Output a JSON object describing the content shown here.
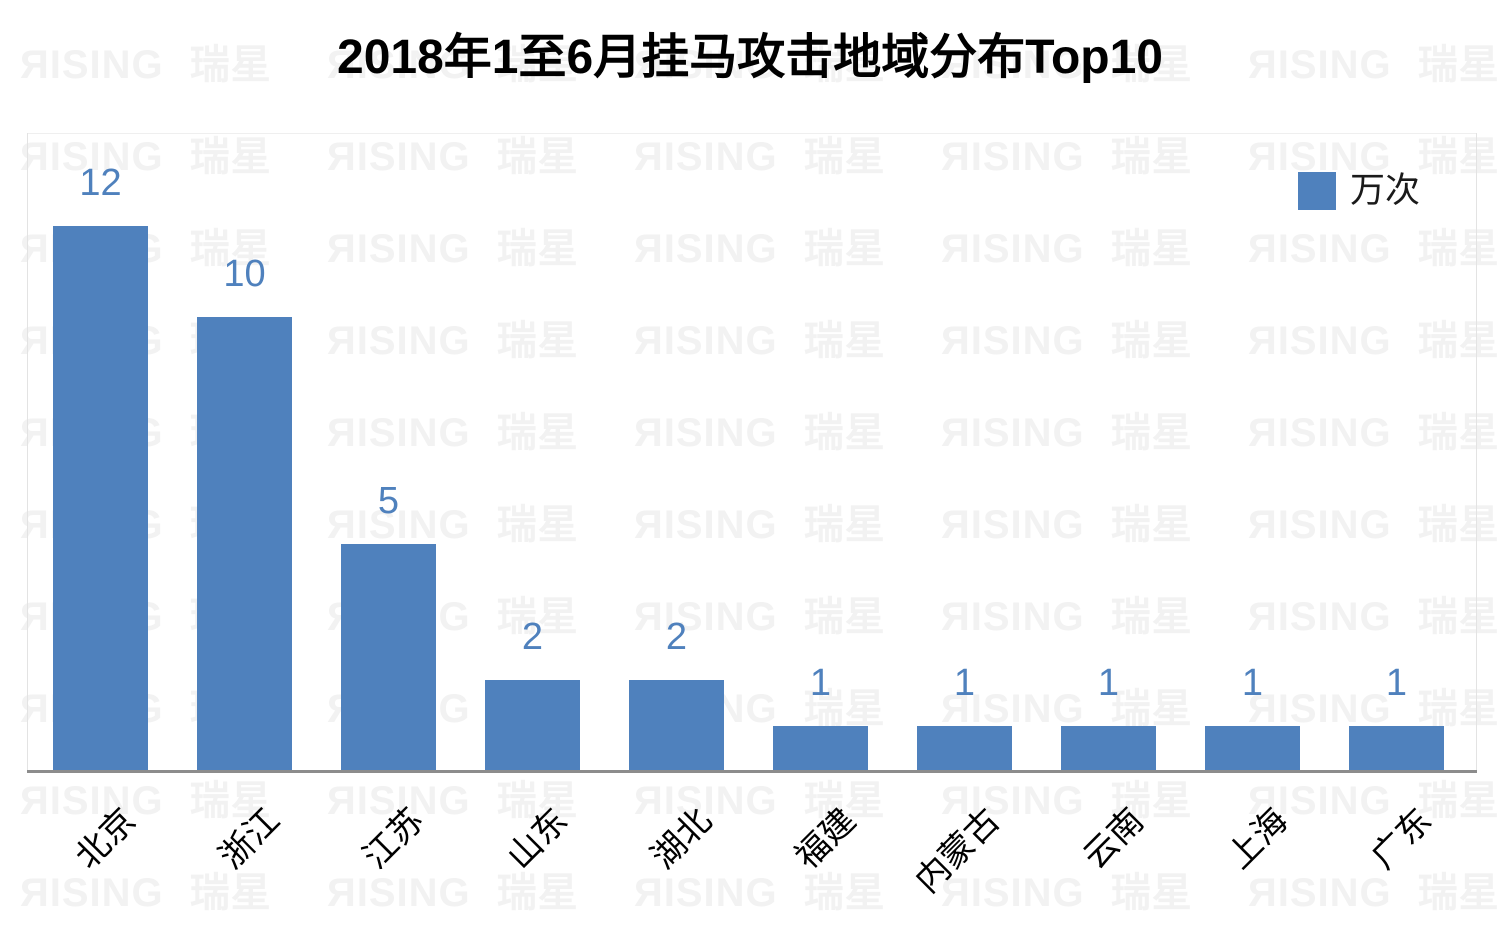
{
  "title": "2018年1至6月挂马攻击地域分布Top10",
  "legend": {
    "label": "万次",
    "color": "#4F81BD"
  },
  "watermark": {
    "text": "ЯISING 瑞星",
    "color": "#F2F2F2"
  },
  "chart_data": {
    "type": "bar",
    "title": "2018年1至6月挂马攻击地域分布Top10",
    "categories": [
      "北京",
      "浙江",
      "江苏",
      "山东",
      "湖北",
      "福建",
      "内蒙古",
      "云南",
      "上海",
      "广东"
    ],
    "values": [
      12,
      10,
      5,
      2,
      2,
      1,
      1,
      1,
      1,
      1
    ],
    "series": [
      {
        "name": "万次",
        "values": [
          12,
          10,
          5,
          2,
          2,
          1,
          1,
          1,
          1,
          1
        ]
      }
    ],
    "unit": "万次",
    "xlabel": "",
    "ylabel": "",
    "ylim": [
      0,
      14
    ],
    "grid": false,
    "data_labels": true,
    "legend_position": "top-right",
    "x_tick_rotation": 45,
    "bar_color": "#4F81BD",
    "label_color": "#4F81BD",
    "axis_line_color": "#8C8C8C"
  }
}
